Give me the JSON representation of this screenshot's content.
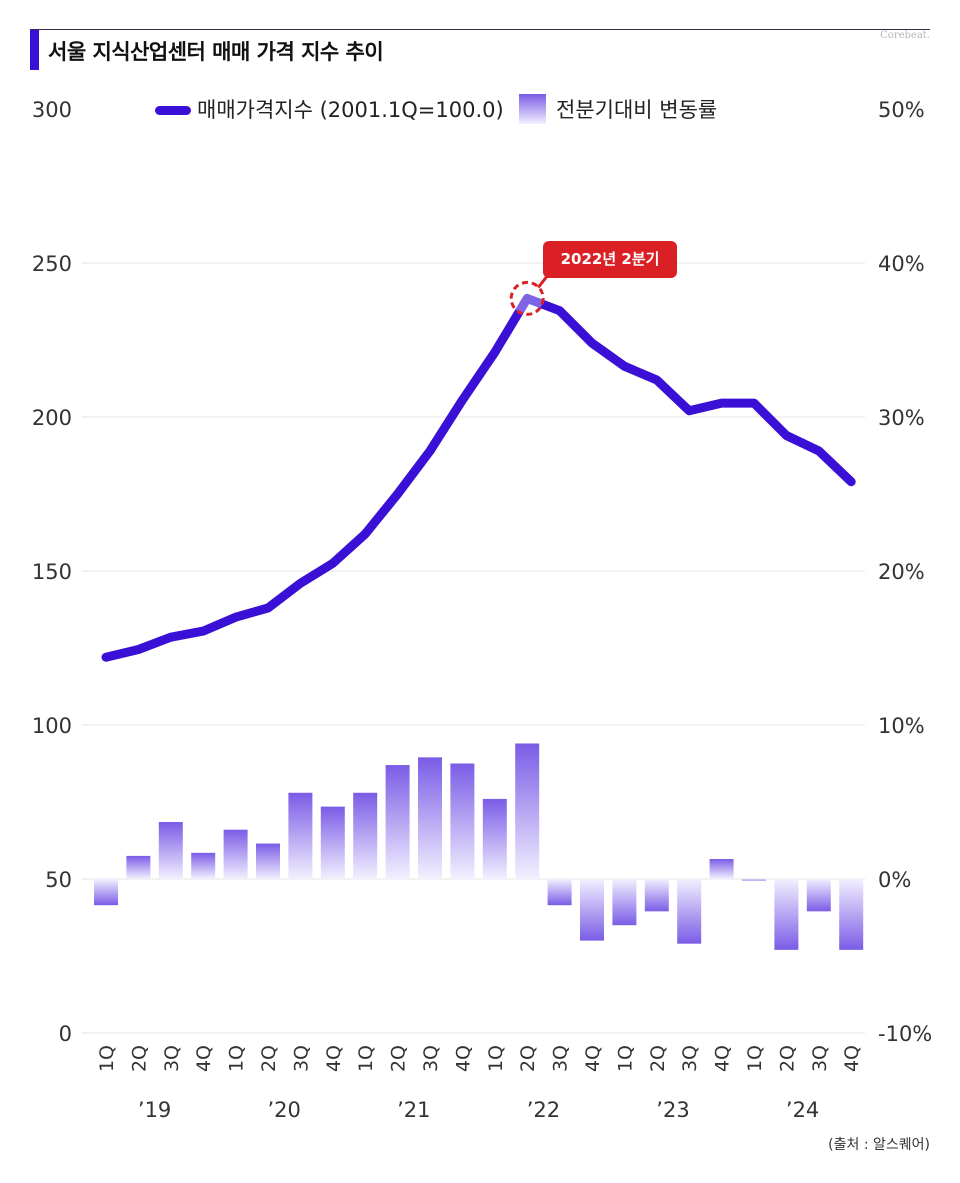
{
  "title": "서울 지식산업센터 매매 가격 지수 추이",
  "brand": "Corebeat.",
  "source": "(출처 : 알스퀘어)",
  "callout": "2022년 2분기",
  "colors": {
    "line": "#3a10d6",
    "bar_top": "#7a5ce6",
    "bar_bottom": "#f3f0ff",
    "callout": "#db2025",
    "title_accent": "#3a10d6"
  },
  "chart_data": {
    "type": "bar+line",
    "categories": [
      "1Q",
      "2Q",
      "3Q",
      "4Q",
      "1Q",
      "2Q",
      "3Q",
      "4Q",
      "1Q",
      "2Q",
      "3Q",
      "4Q",
      "1Q",
      "2Q",
      "3Q",
      "4Q",
      "1Q",
      "2Q",
      "3Q",
      "4Q",
      "1Q",
      "2Q",
      "3Q",
      "4Q"
    ],
    "year_labels": [
      {
        "label": "’19",
        "start": 0
      },
      {
        "label": "’20",
        "start": 4
      },
      {
        "label": "’21",
        "start": 8
      },
      {
        "label": "’22",
        "start": 12
      },
      {
        "label": "’23",
        "start": 16
      },
      {
        "label": "’24",
        "start": 20
      }
    ],
    "series": [
      {
        "name": "매매가격지수 (2001.1Q=100.0)",
        "axis": "left",
        "type": "line",
        "values": [
          122,
          124.5,
          128.5,
          130.5,
          135,
          138,
          146,
          152.5,
          162,
          175,
          189,
          205.5,
          221,
          238.5,
          234.5,
          224,
          216.5,
          212,
          202,
          204.5,
          204.5,
          194,
          189,
          179
        ]
      },
      {
        "name": "전분기대비 변동률",
        "axis": "right",
        "type": "bar",
        "values": [
          -1.7,
          1.5,
          3.7,
          1.7,
          3.2,
          2.3,
          5.6,
          4.7,
          5.6,
          7.4,
          7.9,
          7.5,
          5.2,
          8.8,
          -1.7,
          -4.0,
          -3.0,
          -2.1,
          -4.2,
          1.3,
          -0.1,
          -4.6,
          -2.1,
          -4.6
        ]
      }
    ],
    "y_left": {
      "ticks": [
        "0",
        "50",
        "100",
        "150",
        "200",
        "250",
        "300"
      ],
      "min": 0,
      "max": 300
    },
    "y_right": {
      "ticks": [
        "-10%",
        "0%",
        "10%",
        "20%",
        "30%",
        "40%",
        "50%"
      ],
      "min": -10,
      "max": 50
    },
    "grid": true,
    "legend_position": "top"
  }
}
